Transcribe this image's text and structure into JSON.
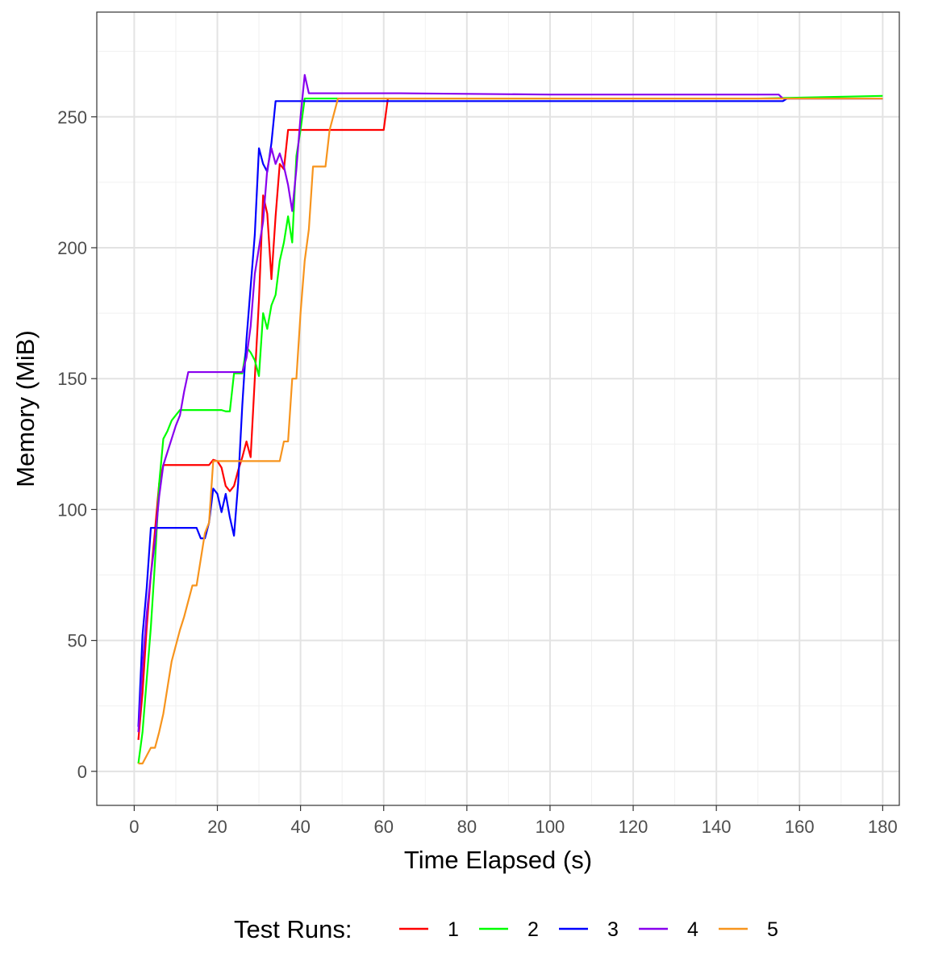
{
  "chart_data": {
    "type": "line",
    "title": "",
    "xlabel": "Time Elapsed (s)",
    "ylabel": "Memory (MiB)",
    "xlim": [
      -9,
      184
    ],
    "ylim": [
      -13,
      290
    ],
    "x_ticks": [
      0,
      20,
      40,
      60,
      80,
      100,
      120,
      140,
      160,
      180
    ],
    "y_ticks": [
      0,
      50,
      100,
      150,
      200,
      250
    ],
    "grid": true,
    "legend": {
      "title": "Test Runs:",
      "placement": "bottom"
    },
    "series": [
      {
        "name": "1",
        "color": "#ff0000",
        "points": [
          [
            1,
            12
          ],
          [
            2,
            30
          ],
          [
            3,
            55
          ],
          [
            4,
            75
          ],
          [
            5,
            92
          ],
          [
            6,
            110
          ],
          [
            7,
            117
          ],
          [
            10,
            117
          ],
          [
            15,
            117
          ],
          [
            18,
            117
          ],
          [
            19,
            119
          ],
          [
            20,
            118.5
          ],
          [
            21,
            116
          ],
          [
            22,
            109
          ],
          [
            23,
            107
          ],
          [
            24,
            109
          ],
          [
            25,
            115
          ],
          [
            26,
            120
          ],
          [
            27,
            126
          ],
          [
            28,
            120
          ],
          [
            29,
            150
          ],
          [
            30,
            180
          ],
          [
            31,
            220
          ],
          [
            32,
            213
          ],
          [
            33,
            188
          ],
          [
            34,
            212
          ],
          [
            35,
            232
          ],
          [
            36,
            230
          ],
          [
            37,
            245
          ],
          [
            40,
            245
          ],
          [
            50,
            245
          ],
          [
            60,
            245
          ],
          [
            61,
            257
          ],
          [
            70,
            257
          ],
          [
            100,
            257
          ],
          [
            150,
            257
          ],
          [
            180,
            257
          ]
        ]
      },
      {
        "name": "2",
        "color": "#00ff00",
        "points": [
          [
            1,
            3
          ],
          [
            2,
            15
          ],
          [
            3,
            35
          ],
          [
            4,
            55
          ],
          [
            5,
            80
          ],
          [
            6,
            110
          ],
          [
            7,
            127
          ],
          [
            8,
            130
          ],
          [
            9,
            134
          ],
          [
            10,
            136
          ],
          [
            11,
            138
          ],
          [
            15,
            138
          ],
          [
            20,
            138
          ],
          [
            21,
            138
          ],
          [
            22,
            137.5
          ],
          [
            23,
            137.5
          ],
          [
            24,
            152
          ],
          [
            26,
            152
          ],
          [
            27,
            162
          ],
          [
            28,
            160
          ],
          [
            29,
            157
          ],
          [
            30,
            151
          ],
          [
            31,
            175
          ],
          [
            32,
            169
          ],
          [
            33,
            178
          ],
          [
            34,
            182
          ],
          [
            35,
            195
          ],
          [
            36,
            202
          ],
          [
            37,
            212
          ],
          [
            38,
            202
          ],
          [
            39,
            235
          ],
          [
            40,
            245
          ],
          [
            41,
            257
          ],
          [
            50,
            257
          ],
          [
            60,
            257
          ],
          [
            100,
            257
          ],
          [
            150,
            257
          ],
          [
            180,
            258
          ]
        ]
      },
      {
        "name": "3",
        "color": "#0000ff",
        "points": [
          [
            1,
            17
          ],
          [
            2,
            52
          ],
          [
            3,
            70
          ],
          [
            4,
            93
          ],
          [
            10,
            93
          ],
          [
            15,
            93
          ],
          [
            16,
            89
          ],
          [
            17,
            89
          ],
          [
            18,
            95
          ],
          [
            19,
            108
          ],
          [
            20,
            106
          ],
          [
            21,
            99
          ],
          [
            22,
            106
          ],
          [
            23,
            97
          ],
          [
            24,
            90
          ],
          [
            25,
            110
          ],
          [
            26,
            140
          ],
          [
            27,
            165
          ],
          [
            28,
            185
          ],
          [
            29,
            205
          ],
          [
            30,
            238
          ],
          [
            31,
            232
          ],
          [
            32,
            229
          ],
          [
            33,
            240
          ],
          [
            34,
            256
          ],
          [
            40,
            256
          ],
          [
            50,
            256
          ],
          [
            60,
            256
          ],
          [
            100,
            256
          ],
          [
            156,
            256
          ],
          [
            157,
            257
          ],
          [
            180,
            257
          ]
        ]
      },
      {
        "name": "4",
        "color": "#8800ee",
        "points": [
          [
            1,
            15
          ],
          [
            2,
            40
          ],
          [
            3,
            60
          ],
          [
            4,
            75
          ],
          [
            5,
            88
          ],
          [
            6,
            105
          ],
          [
            7,
            117
          ],
          [
            8,
            122
          ],
          [
            9,
            127
          ],
          [
            10,
            132
          ],
          [
            11,
            136
          ],
          [
            12,
            145
          ],
          [
            13,
            152.5
          ],
          [
            15,
            152.5
          ],
          [
            20,
            152.5
          ],
          [
            25,
            152.5
          ],
          [
            26,
            152.5
          ],
          [
            27,
            158
          ],
          [
            28,
            170
          ],
          [
            29,
            190
          ],
          [
            30,
            200
          ],
          [
            31,
            210
          ],
          [
            32,
            230
          ],
          [
            33,
            238
          ],
          [
            34,
            232
          ],
          [
            35,
            236
          ],
          [
            36,
            231
          ],
          [
            37,
            224
          ],
          [
            38,
            214
          ],
          [
            39,
            230
          ],
          [
            40,
            250
          ],
          [
            41,
            266
          ],
          [
            42,
            259
          ],
          [
            50,
            259
          ],
          [
            64,
            259
          ],
          [
            100,
            258.5
          ],
          [
            155,
            258.5
          ],
          [
            156,
            257
          ],
          [
            180,
            257
          ]
        ]
      },
      {
        "name": "5",
        "color": "#f7941d",
        "points": [
          [
            1,
            3
          ],
          [
            2,
            3
          ],
          [
            3,
            6
          ],
          [
            4,
            9
          ],
          [
            5,
            9
          ],
          [
            6,
            15
          ],
          [
            7,
            22
          ],
          [
            8,
            32
          ],
          [
            9,
            42
          ],
          [
            10,
            48
          ],
          [
            11,
            54
          ],
          [
            12,
            59
          ],
          [
            13,
            65
          ],
          [
            14,
            71
          ],
          [
            15,
            71
          ],
          [
            16,
            81
          ],
          [
            17,
            91
          ],
          [
            18,
            95
          ],
          [
            19,
            118.5
          ],
          [
            25,
            118.5
          ],
          [
            30,
            118.5
          ],
          [
            35,
            118.5
          ],
          [
            36,
            126
          ],
          [
            37,
            126
          ],
          [
            38,
            150
          ],
          [
            39,
            150
          ],
          [
            40,
            175
          ],
          [
            41,
            195
          ],
          [
            42,
            207
          ],
          [
            43,
            231
          ],
          [
            46,
            231
          ],
          [
            47,
            245
          ],
          [
            49,
            257
          ],
          [
            60,
            257
          ],
          [
            100,
            257
          ],
          [
            180,
            257
          ]
        ]
      }
    ]
  }
}
